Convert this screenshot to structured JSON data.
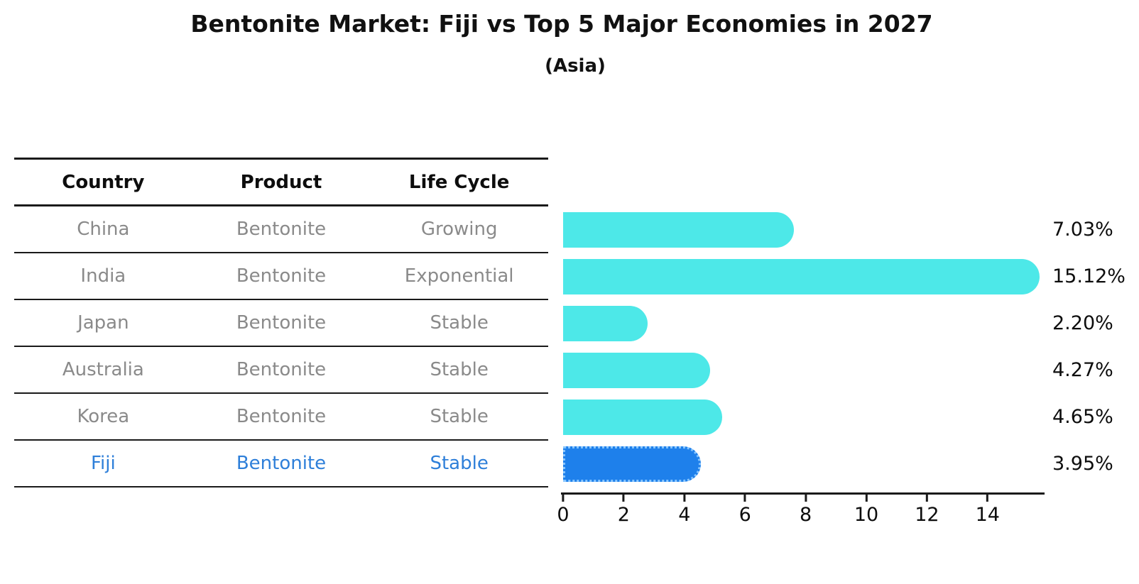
{
  "title": "Bentonite Market: Fiji vs Top 5 Major Economies in 2027",
  "subtitle": "(Asia)",
  "table": {
    "headers": [
      "Country",
      "Product",
      "Life Cycle"
    ],
    "rows": [
      {
        "country": "China",
        "product": "Bentonite",
        "life_cycle": "Growing"
      },
      {
        "country": "India",
        "product": "Bentonite",
        "life_cycle": "Exponential"
      },
      {
        "country": "Japan",
        "product": "Bentonite",
        "life_cycle": "Stable"
      },
      {
        "country": "Australia",
        "product": "Bentonite",
        "life_cycle": "Stable"
      },
      {
        "country": "Korea",
        "product": "Bentonite",
        "life_cycle": "Stable"
      },
      {
        "country": "Fiji",
        "product": "Bentonite",
        "life_cycle": "Stable",
        "highlighted": true
      }
    ]
  },
  "chart_data": {
    "type": "bar",
    "orientation": "horizontal",
    "title": "Bentonite Market: Fiji vs Top 5 Major Economies in 2027",
    "subtitle": "(Asia)",
    "categories": [
      "China",
      "India",
      "Japan",
      "Australia",
      "Korea",
      "Fiji"
    ],
    "values": [
      7.03,
      15.12,
      2.2,
      4.27,
      4.65,
      3.95
    ],
    "value_labels": [
      "7.03%",
      "15.12%",
      "2.20%",
      "4.27%",
      "4.65%",
      "3.95%"
    ],
    "xlabel": "",
    "ylabel": "",
    "xlim": [
      0,
      15.9
    ],
    "xticks": [
      0,
      2,
      4,
      6,
      8,
      10,
      12,
      14
    ],
    "xtick_labels": [
      "0",
      "2",
      "4",
      "6",
      "8",
      "10",
      "12",
      "14"
    ],
    "grid": false,
    "legend": "none",
    "bar_color": "#4de8e8",
    "highlight_bar_color": "#1e80eb",
    "highlight_border_color": "#86c5ff",
    "highlight_text_color": "#2e7fd9",
    "highlight_index": 5
  }
}
